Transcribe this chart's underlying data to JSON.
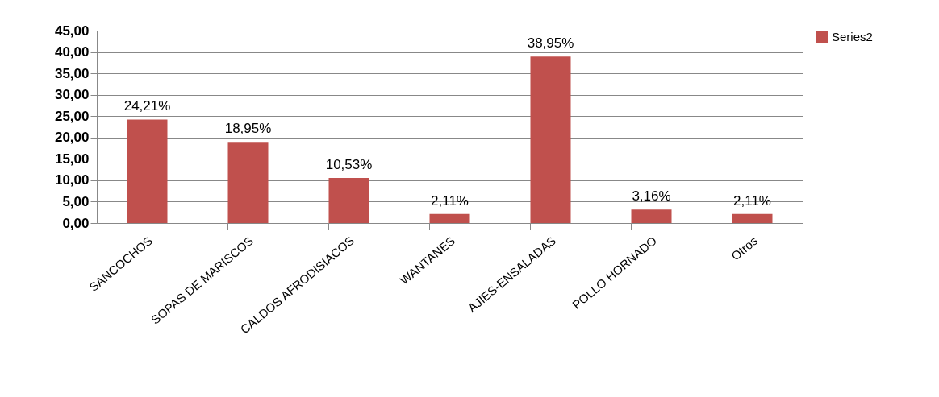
{
  "chart_data": {
    "type": "bar",
    "categories": [
      "SANCOCHOS",
      "SOPAS  DE MARISCOS",
      "CALDOS AFRODISIACOS",
      "WANTANES",
      "AJIES-ENSALADAS",
      "POLLO HORNADO",
      "Otros"
    ],
    "series": [
      {
        "name": "Series2",
        "color": "#c0504d",
        "values": [
          24.21,
          18.95,
          10.53,
          2.11,
          38.95,
          3.16,
          2.11
        ],
        "value_labels": [
          "24,21%",
          "18,95%",
          "10,53%",
          "2,11%",
          "38,95%",
          "3,16%",
          "2,11%"
        ]
      }
    ],
    "ylim": [
      0,
      45
    ],
    "yticks": [
      {
        "value": 0,
        "label": "0,00"
      },
      {
        "value": 5,
        "label": "5,00"
      },
      {
        "value": 10,
        "label": "10,00"
      },
      {
        "value": 15,
        "label": "15,00"
      },
      {
        "value": 20,
        "label": "20,00"
      },
      {
        "value": 25,
        "label": "25,00"
      },
      {
        "value": 30,
        "label": "30,00"
      },
      {
        "value": 35,
        "label": "35,00"
      },
      {
        "value": 40,
        "label": "40,00"
      },
      {
        "value": 45,
        "label": "45,00"
      }
    ],
    "grid": "y",
    "legend": "right"
  }
}
